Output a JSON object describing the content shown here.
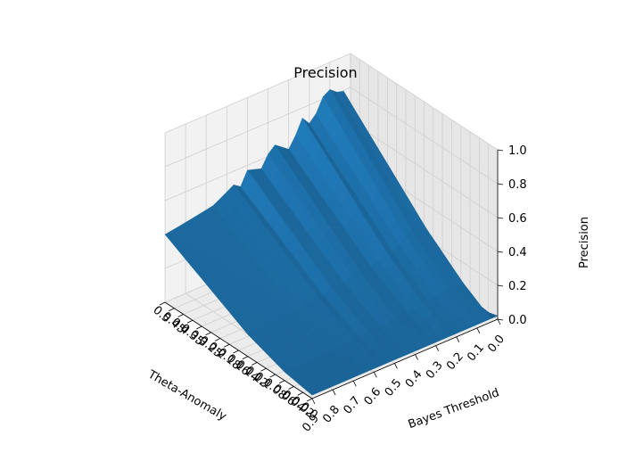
{
  "chart_data": {
    "type": "surface3d",
    "title": "Precision",
    "xlabel": "Theta-Anomaly",
    "ylabel": "Bayes Threshold",
    "zlabel": "Precision",
    "theta_ticks": [
      "0.5",
      "0.45",
      "0.4",
      "0.35",
      "0.3",
      "0.25",
      "0.2",
      "0.18",
      "0.16",
      "0.14",
      "0.12",
      "0.1",
      "0.08",
      "0.06",
      "0.04",
      "0.02",
      "0.0"
    ],
    "bayes_ticks": [
      "0.9",
      "0.8",
      "0.7",
      "0.6",
      "0.5",
      "0.4",
      "0.3",
      "0.2",
      "0.1",
      "0.0"
    ],
    "z_ticks": [
      "0.0",
      "0.2",
      "0.4",
      "0.6",
      "0.8",
      "1.0"
    ],
    "zlim": [
      0,
      1
    ],
    "surface_color": "#1f77b4",
    "grid": true,
    "edge_precision": {
      "theta_0_5_row": [
        0.4,
        0.41,
        0.42,
        0.43,
        0.44,
        0.45,
        0.46,
        0.47,
        0.5,
        0.53,
        0.56,
        0.52,
        0.62,
        0.6,
        0.58,
        0.66,
        0.7,
        0.66,
        0.62,
        0.69,
        0.78,
        0.72,
        0.76,
        0.84,
        0.86,
        0.82,
        0.8,
        0.0
      ],
      "bayes_0_9_row": [
        0.4,
        0.37,
        0.34,
        0.31,
        0.28,
        0.25,
        0.22,
        0.19,
        0.16,
        0.13,
        0.11,
        0.09,
        0.07,
        0.05,
        0.04,
        0.03,
        0.02
      ]
    }
  }
}
